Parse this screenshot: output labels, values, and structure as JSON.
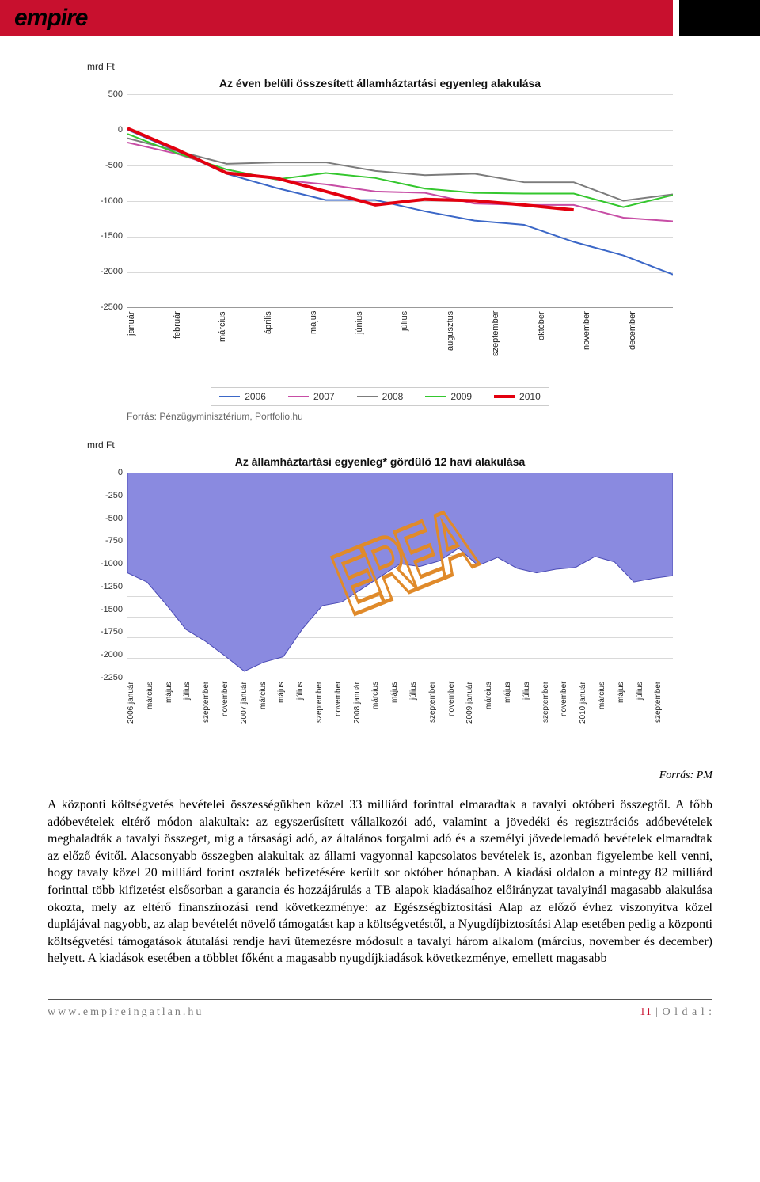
{
  "header": {
    "logo": "empire"
  },
  "chart1": {
    "type": "line",
    "y_axis_label": "mrd Ft",
    "title": "Az éven belüli összesített államháztartási egyenleg alakulása",
    "title_fontsize": 14,
    "label_fontsize": 12,
    "ylim": [
      -2500,
      500
    ],
    "ytick_step": 500,
    "yticks": [
      "500",
      "0",
      "-500",
      "-1000",
      "-1500",
      "-2000",
      "-2500"
    ],
    "xlabels": [
      "január",
      "február",
      "március",
      "április",
      "május",
      "június",
      "július",
      "augusztus",
      "szeptember",
      "október",
      "november",
      "december"
    ],
    "series": [
      {
        "name": "2006",
        "color": "#3b67c7",
        "width": 2,
        "values": [
          0,
          -300,
          -620,
          -820,
          -990,
          -990,
          -1150,
          -1280,
          -1340,
          -1580,
          -1770,
          -2040
        ]
      },
      {
        "name": "2007",
        "color": "#c74da5",
        "width": 2,
        "values": [
          -180,
          -340,
          -560,
          -700,
          -770,
          -870,
          -890,
          -1040,
          -1060,
          -1060,
          -1240,
          -1290
        ]
      },
      {
        "name": "2008",
        "color": "#7c7c7c",
        "width": 2,
        "values": [
          -120,
          -300,
          -480,
          -460,
          -460,
          -580,
          -640,
          -620,
          -740,
          -740,
          -1000,
          -910
        ]
      },
      {
        "name": "2009",
        "color": "#34c72e",
        "width": 2,
        "values": [
          -60,
          -330,
          -560,
          -700,
          -610,
          -680,
          -830,
          -890,
          -900,
          -900,
          -1090,
          -920
        ]
      },
      {
        "name": "2010",
        "color": "#e3000f",
        "width": 4,
        "values": [
          20,
          -280,
          -610,
          -680,
          -870,
          -1060,
          -980,
          -1000,
          -1060,
          -1130,
          null,
          null
        ]
      }
    ],
    "background_color": "#ffffff",
    "grid_color": "#d9d9d9",
    "source": "Forrás: Pénzügyminisztérium, Portfolio.hu"
  },
  "chart2": {
    "type": "area",
    "y_axis_label": "mrd Ft",
    "title": "Az államháztartási egyenleg* gördülő 12 havi alakulása",
    "title_fontsize": 14,
    "ylim": [
      -2250,
      0
    ],
    "ytick_step": 250,
    "yticks": [
      "0",
      "-250",
      "-500",
      "-750",
      "-1000",
      "-1250",
      "-1500",
      "-1750",
      "-2000",
      "-2250"
    ],
    "fill_color": "#8a8ae0",
    "stroke_color": "#4a4ab5",
    "xlabels": [
      "2006.január",
      "március",
      "május",
      "július",
      "szeptember",
      "november",
      "2007.január",
      "március",
      "május",
      "július",
      "szeptember",
      "november",
      "2008.január",
      "március",
      "május",
      "július",
      "szeptember",
      "november",
      "2009.január",
      "március",
      "május",
      "július",
      "szeptember",
      "november",
      "2010.január",
      "március",
      "május",
      "július",
      "szeptember"
    ],
    "values": [
      -1100,
      -1200,
      -1450,
      -1720,
      -1850,
      -2010,
      -2180,
      -2080,
      -2020,
      -1710,
      -1460,
      -1420,
      -1280,
      -1140,
      -1000,
      -1030,
      -970,
      -830,
      -1020,
      -930,
      -1050,
      -1100,
      -1060,
      -1040,
      -920,
      -980,
      -1200,
      -1160,
      -1130
    ],
    "watermark_text": "EREA"
  },
  "source_right": "Forrás: PM",
  "paragraph": "A központi költségvetés bevételei összességükben közel 33 milliárd forinttal elmaradtak a tavalyi októberi összegtől. A főbb adóbevételek eltérő módon alakultak: az egyszerűsített vállalkozói adó, valamint a jövedéki és regisztrációs adóbevételek meghaladták a tavalyi összeget, míg a társasági adó, az általános forgalmi adó és a személyi jövedelemadó bevételek elmaradtak az előző évitől. Alacsonyabb összegben alakultak az állami vagyonnal kapcsolatos bevételek is, azonban figyelembe kell venni, hogy tavaly közel 20 milliárd forint osztalék befizetésére került sor október hónapban. A kiadási oldalon a mintegy 82 milliárd forinttal több kifizetést elsősorban a garancia és hozzájárulás a TB alapok kiadásaihoz előirányzat tavalyinál magasabb alakulása okozta, mely az eltérő finanszírozási rend következménye: az Egészségbiztosítási Alap az előző évhez viszonyítva közel duplájával nagyobb, az alap bevételét növelő támogatást kap a költségvetéstől, a Nyugdíjbiztosítási Alap esetében pedig a központi költségvetési támogatások átutalási rendje havi ütemezésre módosult a tavalyi három alkalom (március, november és december) helyett. A kiadások esetében a többlet főként a magasabb nyugdíjkiadások következménye, emellett magasabb",
  "footer": {
    "url": "www.empireingatlan.hu",
    "page_num": "11",
    "page_label": " | O l d a l :"
  }
}
